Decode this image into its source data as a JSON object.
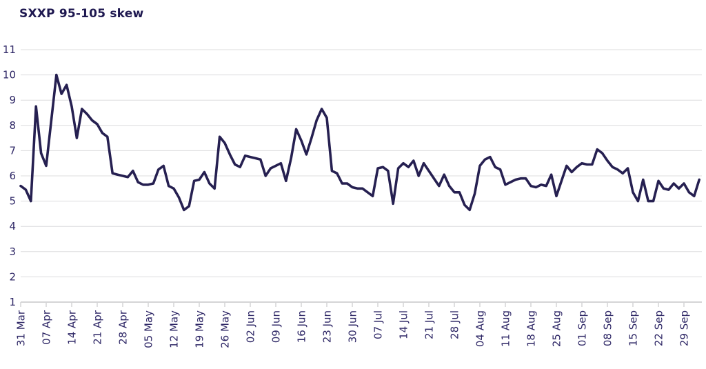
{
  "title": "SXXP 95-105 skew",
  "chart_data": {
    "type": "line",
    "title": "SXXP 95-105 skew",
    "xlabel": "",
    "ylabel": "",
    "ylim": [
      1,
      11
    ],
    "y_ticks": [
      1,
      2,
      3,
      4,
      5,
      6,
      7,
      8,
      9,
      10,
      11
    ],
    "grid": "horizontal gridlines on",
    "legend": "none",
    "x_tick_labels": [
      "31 Mar",
      "07 Apr",
      "14 Apr",
      "21 Apr",
      "28 Apr",
      "05 May",
      "12 May",
      "19 May",
      "26 May",
      "02 Jun",
      "09 Jun",
      "16 Jun",
      "23 Jun",
      "30 Jun",
      "07 Jul",
      "14 Jul",
      "21 Jul",
      "28 Jul",
      "04 Aug",
      "11 Aug",
      "18 Aug",
      "25 Aug",
      "01 Sep",
      "08 Sep",
      "15 Sep",
      "22 Sep",
      "29 Sep"
    ],
    "points_per_tick": 5,
    "series": [
      {
        "name": "SXXP 95-105 skew",
        "values": [
          5.6,
          5.45,
          5.0,
          8.75,
          6.9,
          6.4,
          8.2,
          10.0,
          9.25,
          9.6,
          8.75,
          7.5,
          8.65,
          8.45,
          8.2,
          8.05,
          7.7,
          7.55,
          6.1,
          6.05,
          6.0,
          5.95,
          6.2,
          5.75,
          5.65,
          5.65,
          5.7,
          6.25,
          6.4,
          5.6,
          5.5,
          5.15,
          4.65,
          4.8,
          5.8,
          5.85,
          6.15,
          5.7,
          5.5,
          7.55,
          7.3,
          6.85,
          6.45,
          6.35,
          6.8,
          6.75,
          6.7,
          6.65,
          6.0,
          6.3,
          6.4,
          6.5,
          5.8,
          6.7,
          7.85,
          7.4,
          6.85,
          7.5,
          8.2,
          8.65,
          8.3,
          6.2,
          6.1,
          5.7,
          5.7,
          5.55,
          5.5,
          5.5,
          5.35,
          5.2,
          6.3,
          6.35,
          6.2,
          4.9,
          6.3,
          6.5,
          6.35,
          6.6,
          6.0,
          6.5,
          6.2,
          5.9,
          5.6,
          6.05,
          5.6,
          5.35,
          5.35,
          4.85,
          4.65,
          5.3,
          6.4,
          6.65,
          6.75,
          6.35,
          6.25,
          5.65,
          5.75,
          5.85,
          5.9,
          5.9,
          5.6,
          5.55,
          5.65,
          5.6,
          6.05,
          5.2,
          5.8,
          6.4,
          6.15,
          6.35,
          6.5,
          6.45,
          6.45,
          7.05,
          6.9,
          6.6,
          6.35,
          6.25,
          6.1,
          6.3,
          5.35,
          5.0,
          5.85,
          5.0,
          5.0,
          5.8,
          5.5,
          5.45,
          5.7,
          5.5,
          5.7,
          5.35,
          5.2,
          5.85
        ]
      }
    ],
    "colors": {
      "line": "#262051",
      "grid": "#dcdcde",
      "axis": "#d4d4d6",
      "labels": "#2e2766",
      "title": "#1e1850",
      "background": "#ffffff"
    }
  }
}
